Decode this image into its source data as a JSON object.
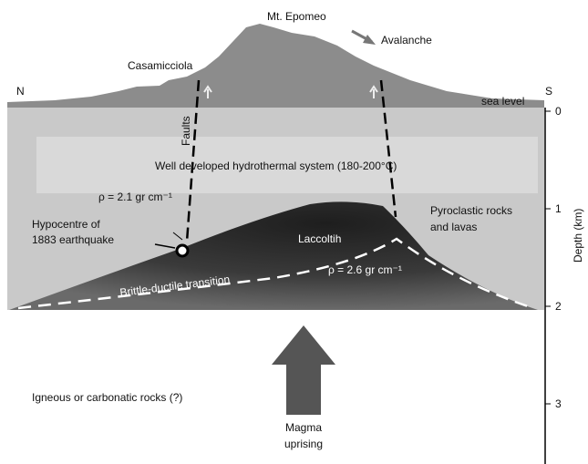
{
  "labels": {
    "peak": "Mt. Epomeo",
    "avalanche": "Avalanche",
    "town": "Casamicciola",
    "north": "N",
    "south": "S",
    "sea_level": "sea level",
    "faults": "Faults",
    "hydrothermal": "Well developed hydrothermal system (180-200°C)",
    "density_upper": "ρ = 2.1 gr cm⁻¹",
    "hypocentre": [
      "Hypocentre of",
      "1883 earthquake"
    ],
    "laccolith": "Laccoltih",
    "pyroclastic": [
      "Pyroclastic rocks",
      "and lavas"
    ],
    "transition": "Brittle-ductile transition",
    "density_lower": "ρ = 2.6 gr cm⁻¹",
    "basement": "Igneous or carbonatic rocks (?)",
    "magma": [
      "Magma",
      "uprising"
    ]
  },
  "depth_axis": {
    "title": "Depth (km)",
    "ticks": [
      0,
      1,
      2,
      3
    ]
  }
}
